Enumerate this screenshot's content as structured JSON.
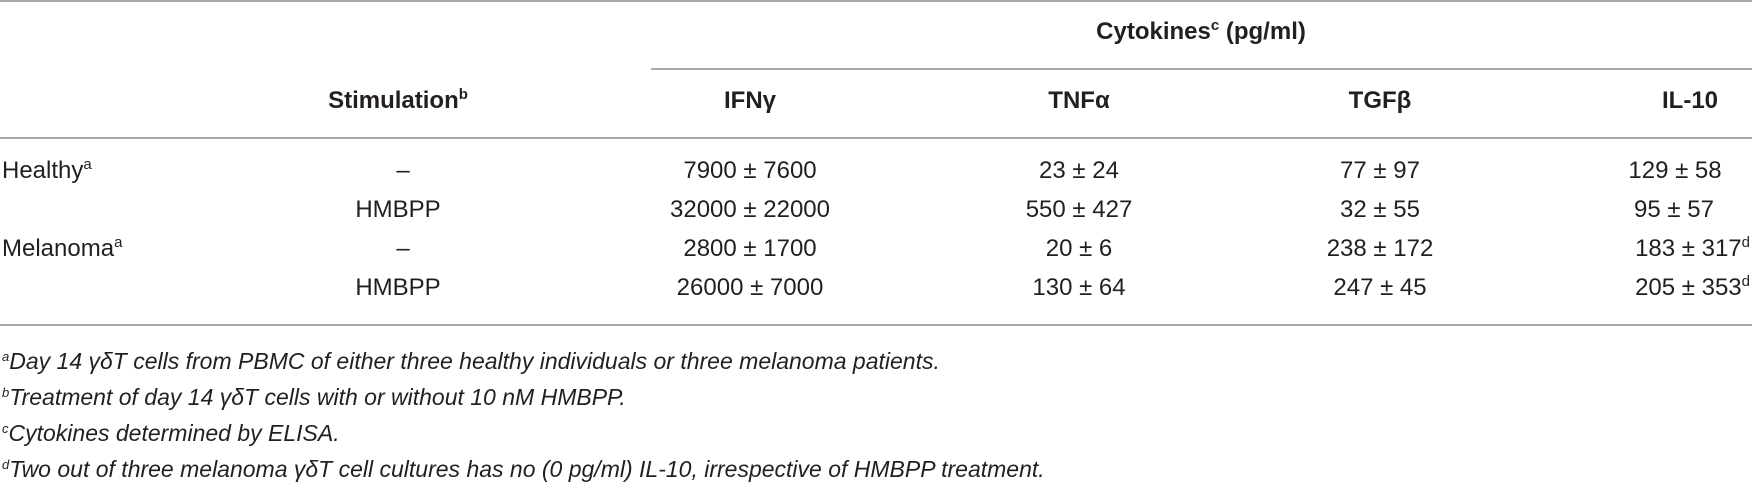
{
  "header": {
    "group_title": "Cytokines",
    "group_title_sup": "c",
    "group_unit": "(pg/ml)",
    "stimulation": "Stimulation",
    "stimulation_sup": "b",
    "columns": [
      "IFNγ",
      "TNFα",
      "TGFβ",
      "IL-10"
    ]
  },
  "rows": [
    {
      "group": "Healthy",
      "group_sup": "a",
      "stimulation": "–",
      "values": [
        "7900 ± 7600",
        "23 ± 24",
        "77 ± 97",
        "129 ± 58"
      ],
      "last_sup": ""
    },
    {
      "group": "",
      "group_sup": "",
      "stimulation": "HMBPP",
      "values": [
        "32000 ± 22000",
        "550 ± 427",
        "32 ± 55",
        "95 ± 57"
      ],
      "last_sup": ""
    },
    {
      "group": "Melanoma",
      "group_sup": "a",
      "stimulation": "–",
      "values": [
        "2800 ± 1700",
        "20 ± 6",
        "238 ± 172",
        "183 ± 317"
      ],
      "last_sup": "d"
    },
    {
      "group": "",
      "group_sup": "",
      "stimulation": "HMBPP",
      "values": [
        "26000 ± 7000",
        "130 ± 64",
        "247 ± 45",
        "205 ± 353"
      ],
      "last_sup": "d"
    }
  ],
  "footnotes": [
    {
      "mark": "a",
      "text": "Day 14 γδT cells from PBMC of either three healthy individuals or three melanoma patients."
    },
    {
      "mark": "b",
      "text": "Treatment of day 14 γδT cells with or without 10 nM HMBPP."
    },
    {
      "mark": "c",
      "text": "Cytokines determined by ELISA."
    },
    {
      "mark": "d",
      "text": "Two out of three melanoma γδT cell cultures has no (0 pg/ml) IL-10, irrespective of HMBPP treatment."
    }
  ]
}
